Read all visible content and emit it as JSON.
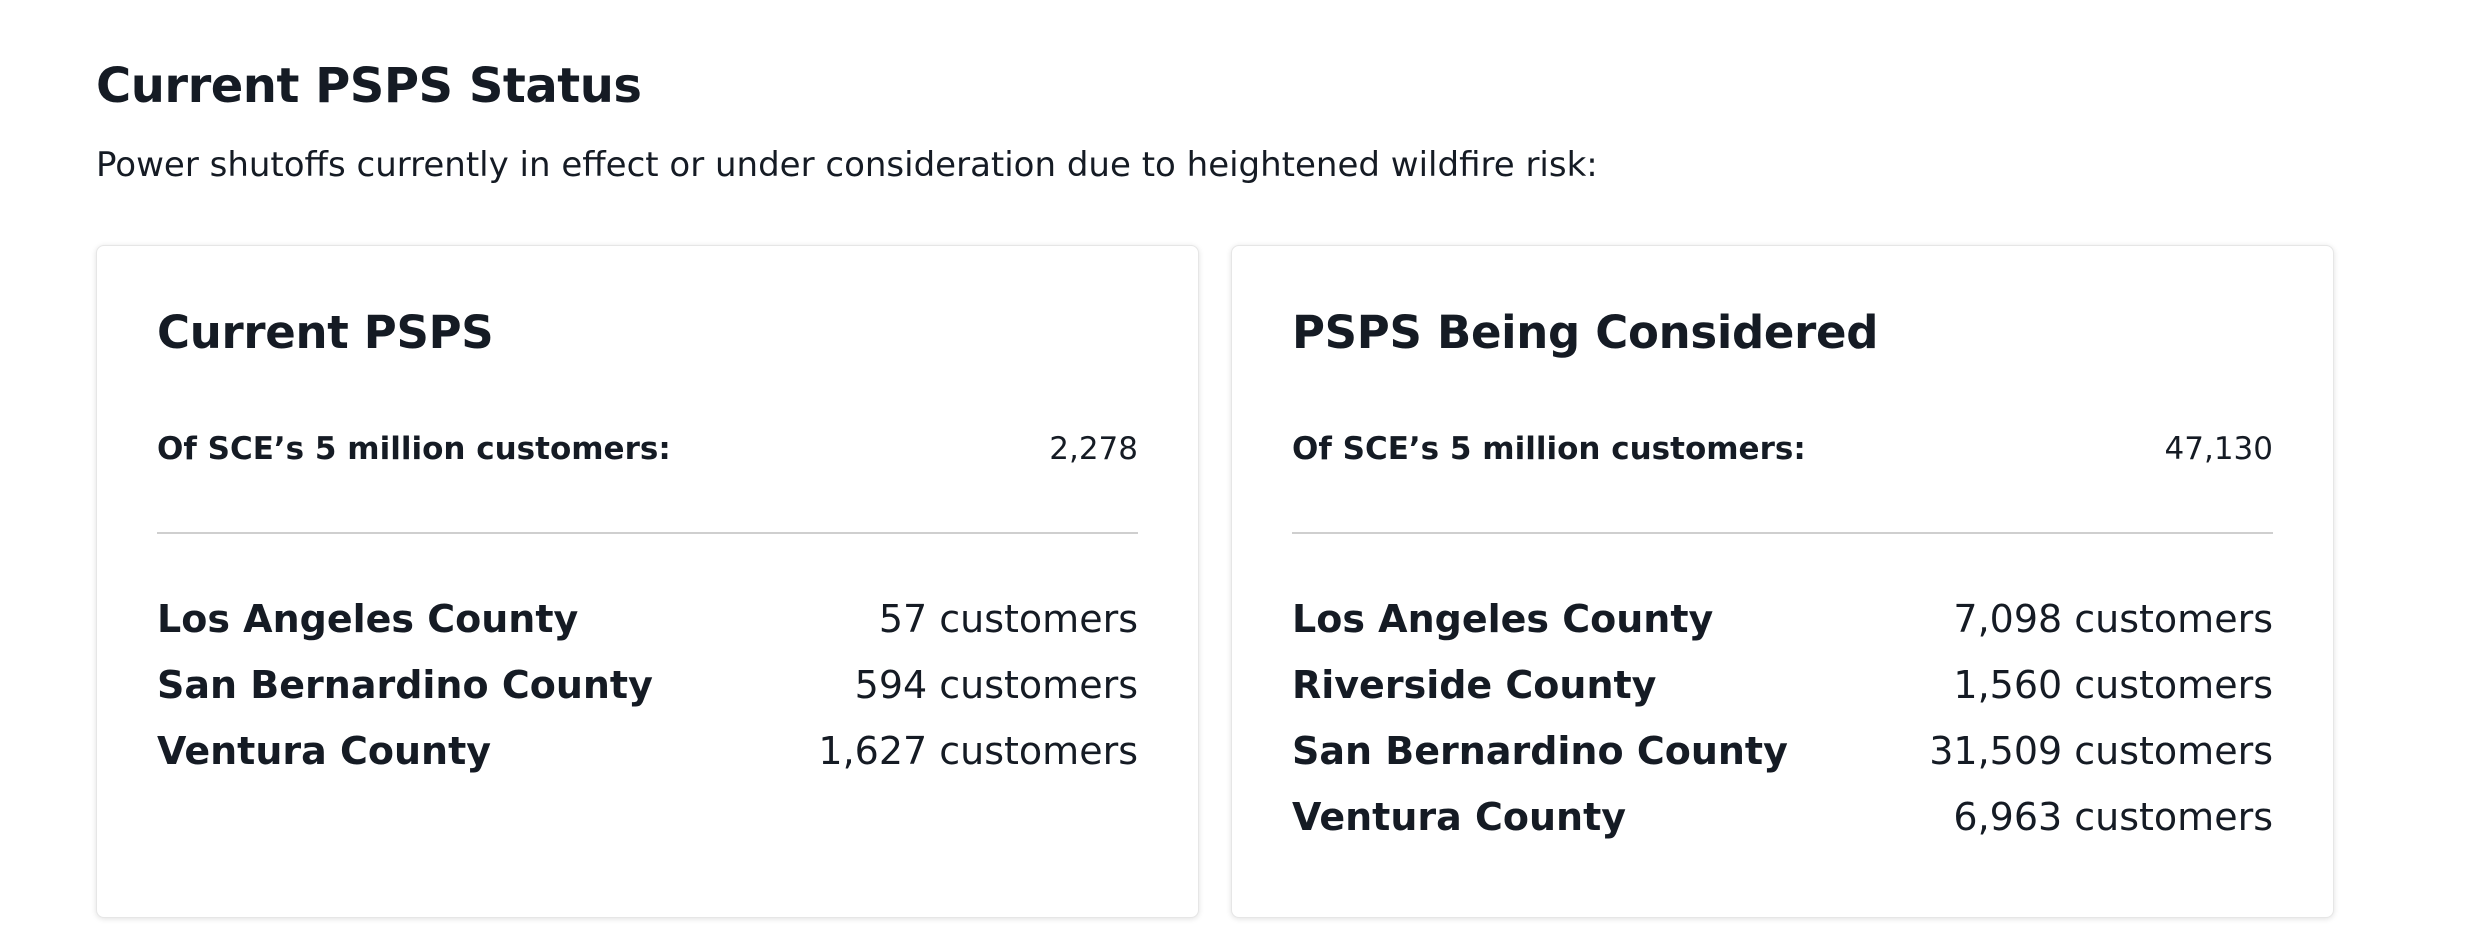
{
  "header": {
    "title": "Current PSPS Status",
    "subtitle": "Power shutoffs currently in effect or under consideration due to heightened wildfire risk:"
  },
  "cards": [
    {
      "title": "Current PSPS",
      "summary_label": "Of SCE’s 5 million customers:",
      "summary_value": "2,278",
      "rows": [
        {
          "county": "Los Angeles County",
          "customers": "57 customers"
        },
        {
          "county": "San Bernardino County",
          "customers": "594 customers"
        },
        {
          "county": "Ventura County",
          "customers": "1,627 customers"
        }
      ]
    },
    {
      "title": "PSPS Being Considered",
      "summary_label": "Of SCE’s 5 million customers:",
      "summary_value": "47,130",
      "rows": [
        {
          "county": "Los Angeles County",
          "customers": "7,098 customers"
        },
        {
          "county": "Riverside County",
          "customers": "1,560 customers"
        },
        {
          "county": "San Bernardino County",
          "customers": "31,509 customers"
        },
        {
          "county": "Ventura County",
          "customers": "6,963 customers"
        }
      ]
    }
  ]
}
